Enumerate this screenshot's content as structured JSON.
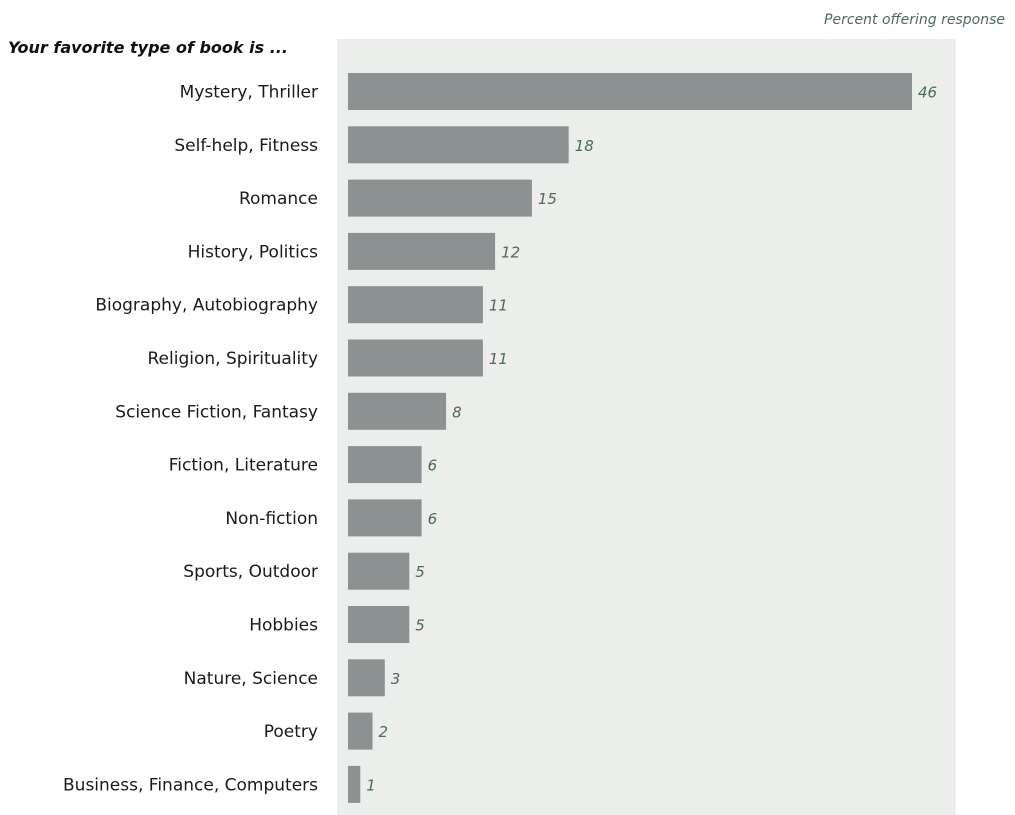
{
  "colors": {
    "plot_background": "#ebeeea",
    "bar": "#8c9292",
    "value_label": "#4a6b5c",
    "category_label": "#1a1a1a"
  },
  "chart_data": {
    "type": "bar",
    "orientation": "horizontal",
    "title": "Your favorite type of book is ...",
    "subtitle": "Percent offering response",
    "categories": [
      "Mystery, Thriller",
      "Self-help, Fitness",
      "Romance",
      "History, Politics",
      "Biography, Autobiography",
      "Religion, Spirituality",
      "Science Fiction, Fantasy",
      "Fiction, Literature",
      "Non-fiction",
      "Sports, Outdoor",
      "Hobbies",
      "Nature, Science",
      "Poetry",
      "Business, Finance, Computers"
    ],
    "values": [
      46,
      18,
      15,
      12,
      11,
      11,
      8,
      6,
      6,
      5,
      5,
      3,
      2,
      1
    ],
    "value_labels": [
      "46",
      "18",
      "15",
      "12",
      "11",
      "11",
      "8",
      "6",
      "6",
      "5",
      "5",
      "3",
      "2",
      "1"
    ],
    "xlim": [
      0,
      50
    ],
    "grid": false,
    "legend": "none"
  }
}
